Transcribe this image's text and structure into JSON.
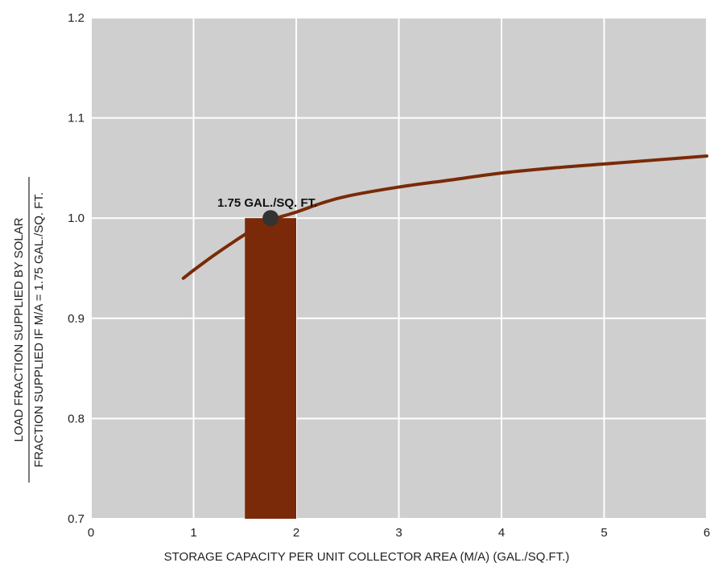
{
  "chart_data": {
    "type": "line",
    "title": "",
    "xlabel": "STORAGE CAPACITY PER UNIT COLLECTOR AREA (M/A) (GAL./SQ.FT.)",
    "ylabel_numerator": "LOAD FRACTION SUPPLIED BY SOLAR",
    "ylabel_denominator": "FRACTION SUPPLIED IF M/A = 1.75 GAL./SQ. FT.",
    "xlim": [
      0,
      6
    ],
    "ylim": [
      0.7,
      1.2
    ],
    "x_ticks": [
      "0",
      "1",
      "2",
      "3",
      "4",
      "5",
      "6"
    ],
    "y_ticks": [
      "0.7",
      "0.8",
      "0.9",
      "1.0",
      "1.1",
      "1.2"
    ],
    "grid": true,
    "series": [
      {
        "x": [
          0.9,
          1.0,
          1.2,
          1.4,
          1.6,
          1.75,
          2.0,
          2.25,
          2.5,
          3.0,
          3.5,
          4.0,
          4.5,
          5.0,
          5.5,
          6.0
        ],
        "values": [
          0.94,
          0.948,
          0.963,
          0.977,
          0.99,
          0.998,
          1.006,
          1.015,
          1.022,
          1.031,
          1.038,
          1.045,
          1.05,
          1.054,
          1.058,
          1.062
        ]
      }
    ],
    "highlight_band": {
      "x_range": [
        1.5,
        2.0
      ],
      "color": "#7a2a08"
    },
    "point": {
      "x": 1.75,
      "y": 1.0,
      "label": "1.75 GAL./SQ. FT."
    },
    "colors": {
      "background": "#cfcfcf",
      "grid": "#ffffff",
      "line": "#7a2a08",
      "point": "#333333"
    }
  }
}
